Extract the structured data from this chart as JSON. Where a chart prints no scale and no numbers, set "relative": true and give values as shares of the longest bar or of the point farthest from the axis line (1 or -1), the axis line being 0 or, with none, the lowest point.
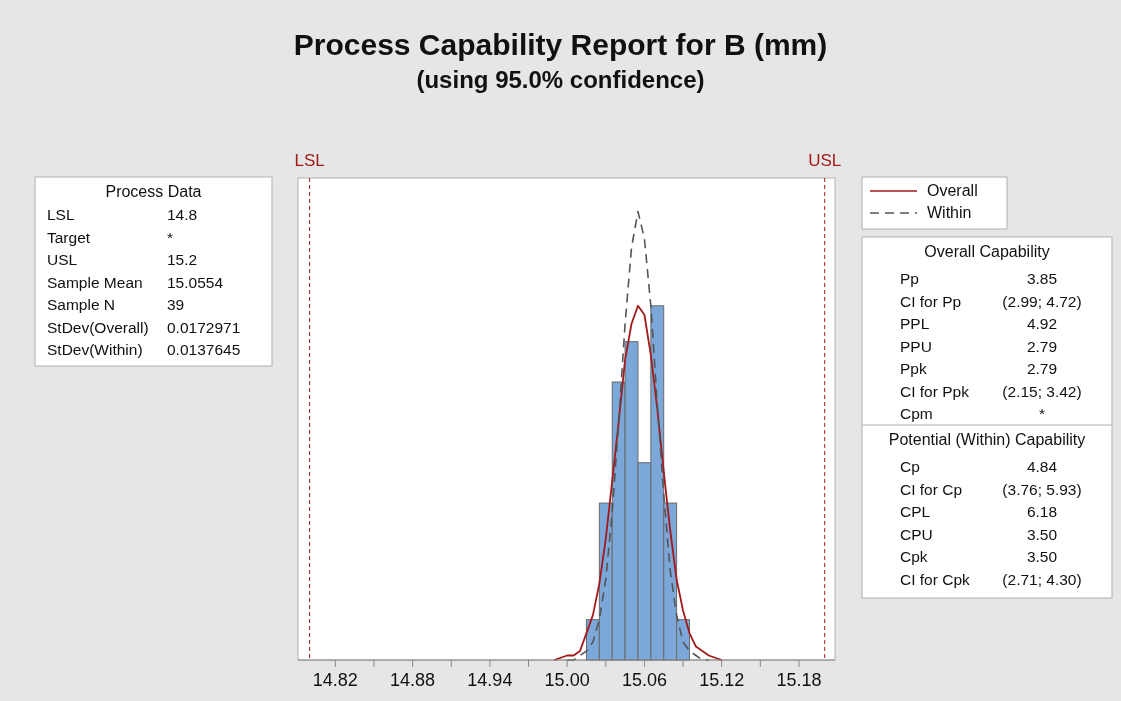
{
  "chart_data": [
    {
      "type": "histogram",
      "title": "Process Capability Report for B (mm)",
      "subtitle": "(using 95.0% confidence)",
      "relative": true,
      "bins": [
        15.015,
        15.025,
        15.035,
        15.045,
        15.055,
        15.065,
        15.075,
        15.085,
        15.095
      ],
      "values": [
        0.09,
        0.35,
        0.62,
        0.71,
        0.44,
        0.79,
        0.35,
        0.09
      ],
      "color": "#7ba7d9",
      "series": [
        {
          "name": "Overall",
          "type": "line",
          "color": "#a31a1a",
          "line_style": "solid",
          "x": [
            14.99,
            15,
            15.005,
            15.01,
            15.015,
            15.02,
            15.025,
            15.03,
            15.035,
            15.04,
            15.045,
            15.05,
            15.055,
            15.06,
            15.065,
            15.07,
            15.075,
            15.08,
            15.085,
            15.09,
            15.095,
            15.1,
            15.105,
            15.11,
            15.12
          ],
          "values": [
            0,
            0.01,
            0.01,
            0.02,
            0.06,
            0.1,
            0.17,
            0.27,
            0.4,
            0.53,
            0.67,
            0.75,
            0.79,
            0.77,
            0.68,
            0.56,
            0.42,
            0.29,
            0.18,
            0.11,
            0.06,
            0.03,
            0.02,
            0.01,
            0
          ]
        },
        {
          "name": "Within",
          "type": "line",
          "color": "#555555",
          "line_style": "dashed",
          "x": [
            15,
            15.005,
            15.01,
            15.015,
            15.02,
            15.025,
            15.03,
            15.035,
            15.04,
            15.045,
            15.05,
            15.055,
            15.06,
            15.065,
            15.07,
            15.075,
            15.08,
            15.085,
            15.09,
            15.095,
            15.1,
            15.105,
            15.11
          ],
          "values": [
            0,
            0,
            0.01,
            0.02,
            0.04,
            0.09,
            0.18,
            0.33,
            0.53,
            0.75,
            0.92,
            1,
            0.94,
            0.79,
            0.57,
            0.37,
            0.2,
            0.1,
            0.04,
            0.02,
            0.01,
            0,
            0
          ]
        }
      ],
      "xlim": [
        14.791,
        15.208
      ],
      "xticks": [
        14.82,
        {
          "value": 14.85,
          "label": null
        },
        14.88,
        {
          "value": 14.91,
          "label": null
        },
        14.94,
        {
          "value": 14.97,
          "label": null
        },
        {
          "value": 15,
          "label": "15.00"
        },
        {
          "value": 15.03,
          "label": null
        },
        15.06,
        {
          "value": 15.09,
          "label": null
        },
        15.12,
        {
          "value": 15.15,
          "label": null
        },
        15.18
      ],
      "ref_lines": [
        {
          "axis": "x",
          "value": 14.8,
          "label": "LSL",
          "color": "#a31a1a",
          "line_style": "dashed"
        },
        {
          "axis": "x",
          "value": 15.2,
          "label": "USL",
          "color": "#a31a1a",
          "line_style": "dashed"
        }
      ],
      "grid": false,
      "legend": "top right",
      "tick_labels": "x"
    },
    {
      "type": "other",
      "title": "Process Data",
      "annotations": [
        "LSL",
        "14.8",
        "Target",
        "*",
        "USL",
        "15.2",
        "Sample Mean",
        "15.0554",
        "Sample N",
        "39",
        "StDev(Overall)",
        "0.0172971",
        "StDev(Within)",
        "0.0137645"
      ]
    },
    {
      "type": "other",
      "title": "Overall Capability",
      "annotations": [
        "Pp",
        "3.85",
        "CI for Pp",
        "(2.99; 4.72)",
        "PPL",
        "4.92",
        "PPU",
        "2.79",
        "Ppk",
        "2.79",
        "CI for Ppk",
        "(2.15; 3.42)",
        "Cpm",
        "*"
      ]
    },
    {
      "type": "other",
      "title": "Potential (Within) Capability",
      "annotations": [
        "Cp",
        "4.84",
        "CI for Cp",
        "(3.76; 5.93)",
        "CPL",
        "6.18",
        "CPU",
        "3.50",
        "Cpk",
        "3.50",
        "CI for Cpk",
        "(2.71; 4.30)"
      ]
    }
  ]
}
